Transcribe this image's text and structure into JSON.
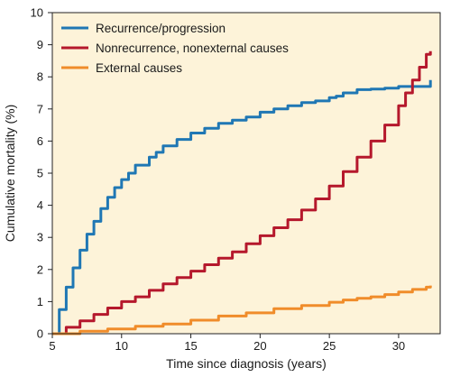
{
  "chart_data": {
    "type": "line",
    "xlabel": "Time since diagnosis (years)",
    "ylabel": "Cumulative mortality (%)",
    "xlim": [
      5,
      33
    ],
    "ylim": [
      0,
      10
    ],
    "x_ticks": [
      5,
      10,
      15,
      20,
      25,
      30
    ],
    "y_ticks": [
      0,
      1,
      2,
      3,
      4,
      5,
      6,
      7,
      8,
      9,
      10
    ],
    "grid": false,
    "background": "#fdf3d9",
    "legend_position": "top-left",
    "series": [
      {
        "name": "Recurrence/progression",
        "color": "#1f77b4",
        "x": [
          5,
          5.5,
          6,
          6.5,
          7,
          7.5,
          8,
          8.5,
          9,
          9.5,
          10,
          10.5,
          11,
          12,
          12.5,
          13,
          14,
          15,
          16,
          17,
          18,
          19,
          20,
          21,
          22,
          23,
          24,
          25,
          25.5,
          26,
          27,
          28,
          29,
          30,
          31,
          32,
          32.3
        ],
        "y": [
          0,
          0.75,
          1.45,
          2.05,
          2.6,
          3.1,
          3.5,
          3.9,
          4.25,
          4.55,
          4.8,
          5.0,
          5.25,
          5.5,
          5.65,
          5.85,
          6.05,
          6.25,
          6.4,
          6.55,
          6.65,
          6.75,
          6.9,
          7.0,
          7.1,
          7.2,
          7.25,
          7.35,
          7.4,
          7.5,
          7.6,
          7.62,
          7.65,
          7.7,
          7.7,
          7.7,
          7.9
        ]
      },
      {
        "name": "Nonrecurrence, nonexternal causes",
        "color": "#b5182c",
        "x": [
          5,
          6,
          7,
          8,
          9,
          10,
          11,
          12,
          13,
          14,
          15,
          16,
          17,
          18,
          19,
          20,
          21,
          22,
          23,
          24,
          25,
          26,
          27,
          28,
          29,
          30,
          30.5,
          31,
          31.5,
          32,
          32.3
        ],
        "y": [
          0,
          0.2,
          0.4,
          0.6,
          0.8,
          1.0,
          1.15,
          1.35,
          1.55,
          1.75,
          1.95,
          2.15,
          2.35,
          2.55,
          2.8,
          3.05,
          3.3,
          3.55,
          3.85,
          4.2,
          4.6,
          5.05,
          5.5,
          6.0,
          6.5,
          7.1,
          7.5,
          7.9,
          8.3,
          8.7,
          8.8
        ]
      },
      {
        "name": "External causes",
        "color": "#f08c2a",
        "x": [
          5,
          7,
          9,
          11,
          13,
          15,
          17,
          19,
          21,
          23,
          25,
          26,
          27,
          28,
          29,
          30,
          31,
          32,
          32.3
        ],
        "y": [
          0,
          0.08,
          0.15,
          0.23,
          0.3,
          0.42,
          0.55,
          0.65,
          0.78,
          0.88,
          0.98,
          1.05,
          1.1,
          1.15,
          1.22,
          1.3,
          1.38,
          1.45,
          1.5
        ]
      }
    ]
  }
}
